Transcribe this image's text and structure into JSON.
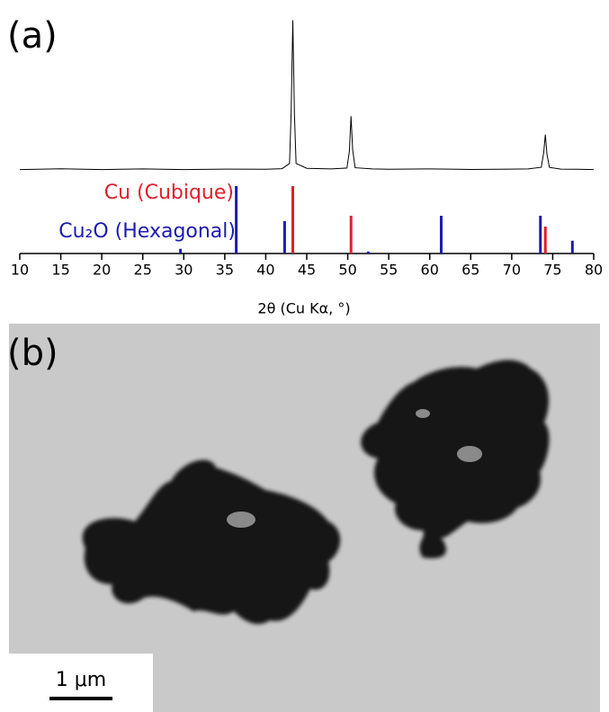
{
  "chart_data": [
    {
      "type": "line",
      "panel_label": "(a)",
      "color": "#000000",
      "x": [
        10,
        15,
        20,
        25,
        30,
        35,
        40,
        42,
        42.9,
        43.1,
        43.3,
        43.5,
        43.7,
        45,
        48,
        49.9,
        50.2,
        50.4,
        50.6,
        50.9,
        53,
        55,
        60,
        65,
        70,
        72,
        73.6,
        73.9,
        74.1,
        74.3,
        74.6,
        76,
        78,
        80
      ],
      "values": [
        2,
        2.5,
        2,
        2.4,
        2,
        2.3,
        2.2,
        2.6,
        6,
        40,
        100,
        38,
        6,
        2.8,
        2.4,
        3,
        14,
        37,
        15,
        3.2,
        2.4,
        2.2,
        2.4,
        2.1,
        2.3,
        2.4,
        3.5,
        13,
        25,
        12,
        3.4,
        2.3,
        2.2,
        2
      ],
      "xlim": [
        10,
        80
      ],
      "ylim": [
        0,
        105
      ]
    },
    {
      "type": "stem",
      "xlabel": "2θ (Cu Kα, °)",
      "xlim": [
        10,
        80
      ],
      "xticks": [
        10,
        15,
        20,
        25,
        30,
        35,
        40,
        45,
        50,
        55,
        60,
        65,
        70,
        75,
        80
      ],
      "ylim": [
        0,
        100
      ],
      "series": [
        {
          "name": "Cu (Cubique)",
          "color": "#e0202a",
          "x": [
            43.3,
            50.4,
            74.1
          ],
          "values": [
            100,
            56,
            40
          ]
        },
        {
          "name": "Cu₂O (Hexagonal)",
          "color": "#1a1ab4",
          "x": [
            29.6,
            36.4,
            42.3,
            52.5,
            61.4,
            73.5,
            77.4
          ],
          "values": [
            7,
            100,
            48,
            3,
            56,
            56,
            19
          ]
        }
      ]
    }
  ],
  "image": {
    "panel_label": "(b)",
    "scale_bar": "1 μm"
  }
}
